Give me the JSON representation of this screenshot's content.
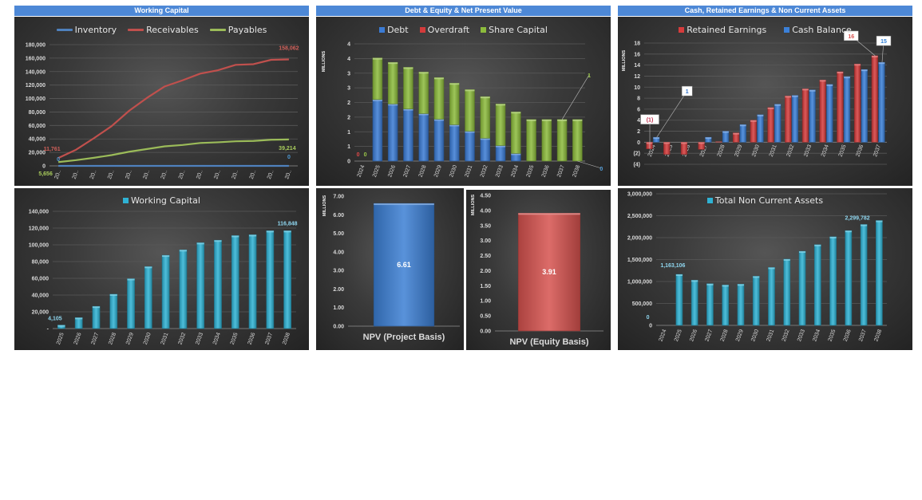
{
  "headers": {
    "working_capital": "Working Capital",
    "debt_equity": "Debt & Equity & Net Present Value",
    "cash_assets": "Cash, Retained Earnings & Non Current Assets"
  },
  "chart_data": [
    {
      "type": "line",
      "categories": [
        "20..",
        "20..",
        "20..",
        "20..",
        "20..",
        "20..",
        "20..",
        "20..",
        "20..",
        "20..",
        "20..",
        "20..",
        "20..",
        "20.."
      ],
      "series": [
        {
          "name": "Inventory",
          "color": "#4f81bd",
          "values": [
            0,
            0,
            0,
            0,
            0,
            0,
            0,
            0,
            0,
            0,
            0,
            0,
            0,
            0
          ]
        },
        {
          "name": "Receivables",
          "color": "#c0504d",
          "values": [
            11761,
            24000,
            41000,
            59000,
            82000,
            101000,
            118000,
            127000,
            137000,
            142000,
            150000,
            151000,
            157500,
            158062
          ]
        },
        {
          "name": "Payables",
          "color": "#9bbb59",
          "values": [
            5656,
            8500,
            12000,
            16000,
            21000,
            25000,
            29000,
            31000,
            34000,
            35000,
            36500,
            37000,
            38800,
            39214
          ]
        }
      ],
      "ylim": [
        0,
        180000
      ],
      "yticks": [
        0,
        20000,
        40000,
        60000,
        80000,
        100000,
        120000,
        140000,
        160000,
        180000
      ],
      "ytick_labels": [
        "0",
        "20,000",
        "40,000",
        "60,000",
        "80,000",
        "100,000",
        "120,000",
        "140,000",
        "160,000",
        "180,000"
      ],
      "ylabel": "",
      "grid": true,
      "legend": "top",
      "data_labels": [
        {
          "series": 1,
          "category": 0,
          "text": "11,761",
          "color": "#d0605a"
        },
        {
          "series": 0,
          "category": 0,
          "text": "0",
          "color": "#4f9bd6"
        },
        {
          "series": 2,
          "category": 0,
          "text": "5,656",
          "color": "#a9cc5c"
        },
        {
          "series": 1,
          "category": 13,
          "text": "158,062",
          "color": "#d0605a"
        },
        {
          "series": 2,
          "category": 13,
          "text": "39,214",
          "color": "#a9cc5c"
        },
        {
          "series": 0,
          "category": 13,
          "text": "0",
          "color": "#4f9bd6"
        }
      ]
    },
    {
      "type": "bar",
      "stacked": true,
      "categories": [
        "2024",
        "2025",
        "2026",
        "2027",
        "2028",
        "2029",
        "2030",
        "2031",
        "2032",
        "2033",
        "2034",
        "2035",
        "2036",
        "2037",
        "2038"
      ],
      "series": [
        {
          "name": "Debt",
          "color": "#3b7bd4",
          "values": [
            0,
            2.1,
            1.95,
            1.78,
            1.62,
            1.43,
            1.24,
            1.02,
            0.78,
            0.53,
            0.26,
            0,
            0,
            0,
            0
          ]
        },
        {
          "name": "Overdraft",
          "color": "#d33b3b",
          "values": [
            0,
            0,
            0,
            0,
            0,
            0,
            0,
            0,
            0,
            0,
            0,
            0,
            0,
            0,
            0
          ]
        },
        {
          "name": "Share Capital",
          "color": "#8cbb3c",
          "values": [
            0,
            1.42,
            1.42,
            1.42,
            1.42,
            1.42,
            1.42,
            1.42,
            1.42,
            1.42,
            1.42,
            1.42,
            1.42,
            1.42,
            1.42
          ]
        }
      ],
      "ylim": [
        0,
        4
      ],
      "yticks": [
        0,
        0.5,
        1,
        1.5,
        2,
        2.5,
        3,
        3.5,
        4
      ],
      "ytick_labels": [
        "0",
        "1",
        "1",
        "2",
        "2",
        "3",
        "3",
        "4",
        "4"
      ],
      "ylabel": "MILLIONS",
      "grid": true,
      "legend": "top",
      "data_labels": [
        {
          "series": 1,
          "category": 0,
          "text": "0",
          "color": "#e04848"
        },
        {
          "series": 2,
          "category": 0,
          "text": "0",
          "color": "#9bc84a"
        },
        {
          "series": 2,
          "category": 13,
          "text": "1",
          "color": "#9bc84a"
        },
        {
          "series": 0,
          "category": 14,
          "text": "0",
          "color": "#4f9bd6"
        }
      ]
    },
    {
      "type": "bar",
      "stacked": false,
      "categories": [
        "2024",
        "2025",
        "2026",
        "2027",
        "2028",
        "2029",
        "2030",
        "2031",
        "2032",
        "2033",
        "2034",
        "2035",
        "2036",
        "2037"
      ],
      "series": [
        {
          "name": "Retained Earnings",
          "color": "#d63c3c",
          "values": [
            -1.2,
            -2.2,
            -2.2,
            -1.3,
            0.1,
            1.7,
            4.0,
            6.3,
            8.4,
            9.7,
            11.3,
            12.8,
            14.2,
            15.7
          ]
        },
        {
          "name": "Cash Balance",
          "color": "#3b80d8",
          "values": [
            0.9,
            0,
            0,
            0.9,
            2.0,
            3.2,
            5.0,
            6.9,
            8.5,
            9.5,
            10.5,
            11.9,
            13.2,
            14.5
          ]
        }
      ],
      "ylim": [
        -4,
        18
      ],
      "yticks": [
        -4,
        -2,
        0,
        2,
        4,
        6,
        8,
        10,
        12,
        14,
        16,
        18
      ],
      "ytick_labels": [
        "(4)",
        "(2)",
        "0",
        "2",
        "4",
        "6",
        "8",
        "10",
        "12",
        "14",
        "16",
        "18"
      ],
      "ylabel": "MILLIONS",
      "grid": true,
      "legend": "top",
      "data_labels": [
        {
          "series": 0,
          "category": 0,
          "text": "(1)",
          "color": "#c0304d"
        },
        {
          "series": 1,
          "category": 0,
          "text": "1",
          "color": "#2f6fc8"
        },
        {
          "series": 0,
          "category": 13,
          "text": "16",
          "color": "#d9534f"
        },
        {
          "series": 1,
          "category": 13,
          "text": "15",
          "color": "#2f80d8"
        }
      ]
    },
    {
      "type": "bar",
      "categories": [
        "2025",
        "2026",
        "2027",
        "2028",
        "2029",
        "2030",
        "2031",
        "2032",
        "2033",
        "2034",
        "2035",
        "2036",
        "2037",
        "2038"
      ],
      "series": [
        {
          "name": "Working Capital",
          "color": "#2fb2d4",
          "values": [
            4105,
            13000,
            26500,
            41000,
            59500,
            74000,
            87500,
            94000,
            102500,
            105500,
            111000,
            112000,
            116800,
            116848
          ]
        }
      ],
      "ylim": [
        0,
        140000
      ],
      "yticks": [
        0,
        20000,
        40000,
        60000,
        80000,
        100000,
        120000,
        140000
      ],
      "ytick_labels": [
        "-",
        "20,000",
        "40,000",
        "60,000",
        "80,000",
        "100,000",
        "120,000",
        "140,000"
      ],
      "ylabel": "",
      "grid": true,
      "legend": "top",
      "data_labels": [
        {
          "series": 0,
          "category": 0,
          "text": "4,105",
          "color": "#8fd6ef"
        },
        {
          "series": 0,
          "category": 13,
          "text": "116,848",
          "color": "#8fd6ef"
        }
      ]
    },
    {
      "type": "bar",
      "categories": [
        "NPV (Project Basis)"
      ],
      "series": [
        {
          "name": "NPV (Project Basis)",
          "color": "#3c7fd4",
          "values": [
            6.61
          ]
        }
      ],
      "ylim": [
        0,
        7
      ],
      "yticks": [
        0,
        1,
        2,
        3,
        4,
        5,
        6,
        7
      ],
      "ytick_labels": [
        "0.00",
        "1.00",
        "2.00",
        "3.00",
        "4.00",
        "5.00",
        "6.00",
        "7.00"
      ],
      "ylabel": "MILLIONS",
      "grid": false,
      "data_labels": [
        {
          "series": 0,
          "category": 0,
          "text": "6.61",
          "color": "#ffffff"
        }
      ]
    },
    {
      "type": "bar",
      "categories": [
        "NPV (Equity Basis)"
      ],
      "series": [
        {
          "name": "NPV (Equity Basis)",
          "color": "#d6524f",
          "values": [
            3.91
          ]
        }
      ],
      "ylim": [
        0,
        4.5
      ],
      "yticks": [
        0,
        0.5,
        1,
        1.5,
        2,
        2.5,
        3,
        3.5,
        4,
        4.5
      ],
      "ytick_labels": [
        "0.00",
        "0.50",
        "1.00",
        "1.50",
        "2.00",
        "2.50",
        "3.00",
        "3.50",
        "4.00",
        "4.50"
      ],
      "ylabel": "MILLIONS",
      "grid": false,
      "data_labels": [
        {
          "series": 0,
          "category": 0,
          "text": "3.91",
          "color": "#ffffff"
        }
      ]
    },
    {
      "type": "bar",
      "categories": [
        "2024",
        "2025",
        "2026",
        "2027",
        "2028",
        "2029",
        "2030",
        "2031",
        "2032",
        "2033",
        "2034",
        "2035",
        "2036",
        "2037",
        "2038"
      ],
      "series": [
        {
          "name": "Total Non Current Assets",
          "color": "#2fb2d4",
          "values": [
            0,
            1163106,
            1030000,
            950000,
            920000,
            940000,
            1120000,
            1320000,
            1510000,
            1690000,
            1840000,
            2020000,
            2160000,
            2299782,
            2390000
          ]
        }
      ],
      "ylim": [
        0,
        3000000
      ],
      "yticks": [
        0,
        500000,
        1000000,
        1500000,
        2000000,
        2500000,
        3000000
      ],
      "ytick_labels": [
        "0",
        "500,000",
        "1,000,000",
        "1,500,000",
        "2,000,000",
        "2,500,000",
        "3,000,000"
      ],
      "ylabel": "",
      "grid": true,
      "legend": "top",
      "data_labels": [
        {
          "series": 0,
          "category": 0,
          "text": "0",
          "color": "#8fd6ef"
        },
        {
          "series": 0,
          "category": 1,
          "text": "1,163,106",
          "color": "#8fd6ef"
        },
        {
          "series": 0,
          "category": 13,
          "text": "2,299,782",
          "color": "#8fd6ef"
        }
      ]
    }
  ]
}
